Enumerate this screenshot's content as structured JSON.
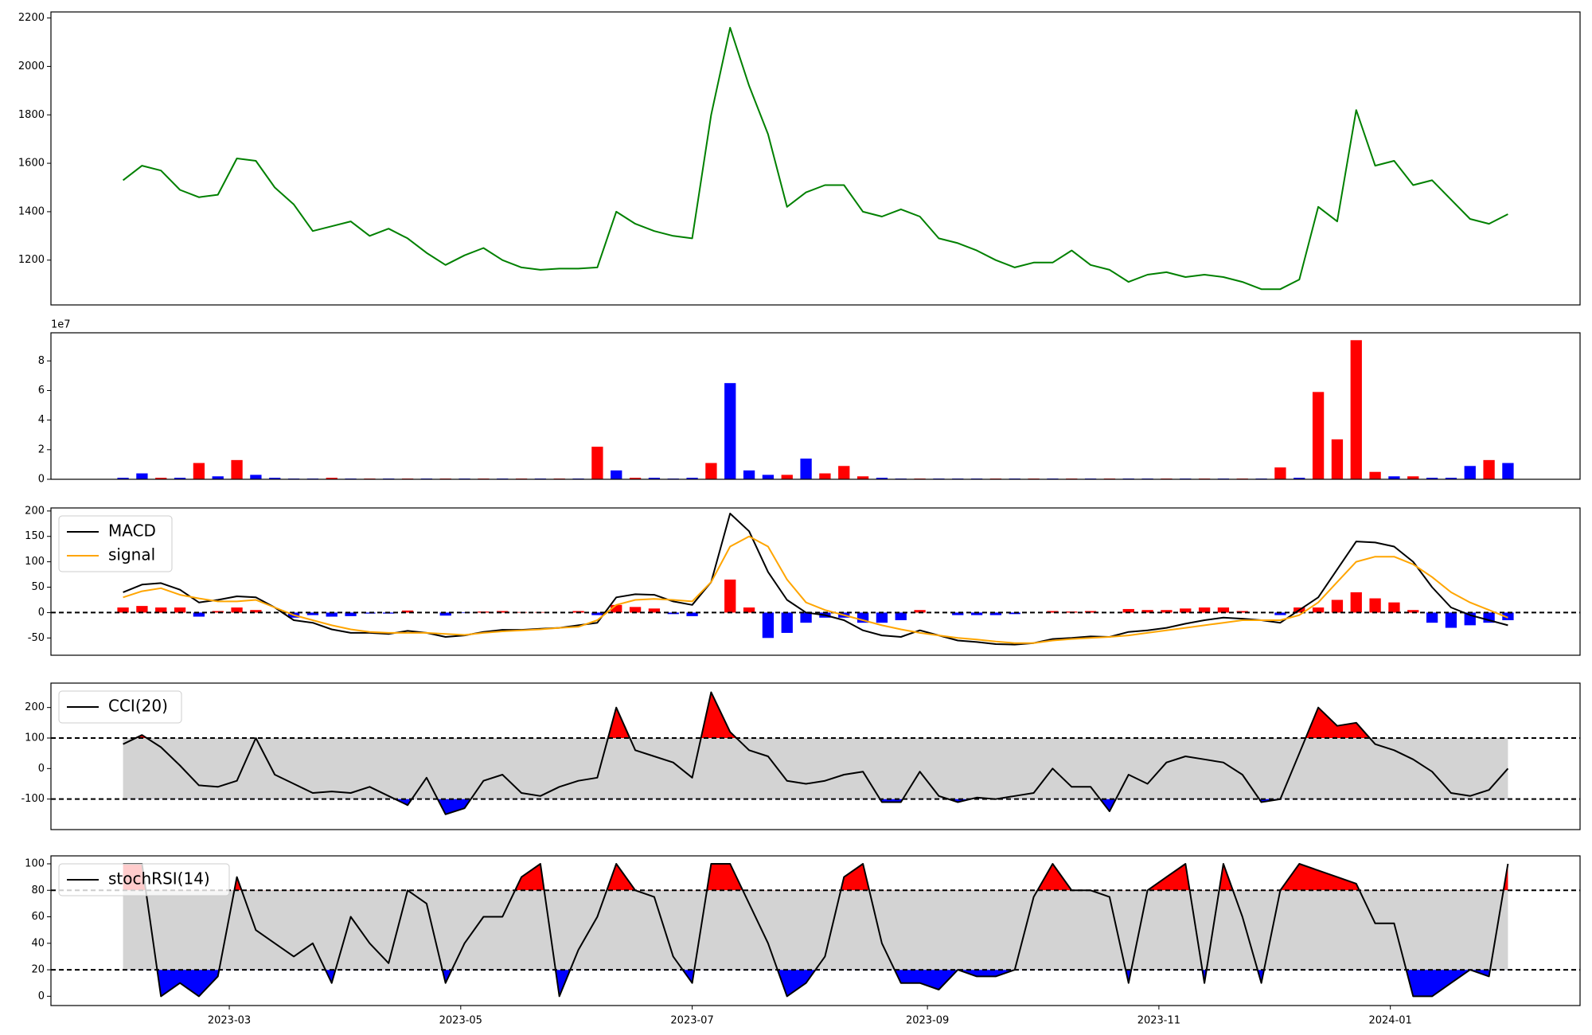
{
  "chart_data": {
    "type": "multi-panel",
    "x": [
      "2023-02-01",
      "2023-02-06",
      "2023-02-11",
      "2023-02-16",
      "2023-02-21",
      "2023-02-26",
      "2023-03-03",
      "2023-03-08",
      "2023-03-13",
      "2023-03-18",
      "2023-03-23",
      "2023-03-28",
      "2023-04-02",
      "2023-04-07",
      "2023-04-12",
      "2023-04-17",
      "2023-04-22",
      "2023-04-27",
      "2023-05-02",
      "2023-05-07",
      "2023-05-12",
      "2023-05-17",
      "2023-05-22",
      "2023-05-27",
      "2023-06-01",
      "2023-06-06",
      "2023-06-11",
      "2023-06-16",
      "2023-06-21",
      "2023-06-26",
      "2023-07-01",
      "2023-07-06",
      "2023-07-11",
      "2023-07-16",
      "2023-07-21",
      "2023-07-26",
      "2023-07-31",
      "2023-08-05",
      "2023-08-10",
      "2023-08-15",
      "2023-08-20",
      "2023-08-25",
      "2023-08-30",
      "2023-09-04",
      "2023-09-09",
      "2023-09-14",
      "2023-09-19",
      "2023-09-24",
      "2023-09-29",
      "2023-10-04",
      "2023-10-09",
      "2023-10-14",
      "2023-10-19",
      "2023-10-24",
      "2023-10-29",
      "2023-11-03",
      "2023-11-08",
      "2023-11-13",
      "2023-11-18",
      "2023-11-23",
      "2023-11-28",
      "2023-12-03",
      "2023-12-08",
      "2023-12-13",
      "2023-12-18",
      "2023-12-23",
      "2023-12-28",
      "2024-01-02",
      "2024-01-07",
      "2024-01-12",
      "2024-01-17",
      "2024-01-22",
      "2024-01-27",
      "2024-02-01"
    ],
    "xlim": [
      "2023-01-13",
      "2024-02-20"
    ],
    "xticks": [
      {
        "value": "2023-03-01",
        "label": "2023-03"
      },
      {
        "value": "2023-05-01",
        "label": "2023-05"
      },
      {
        "value": "2023-07-01",
        "label": "2023-07"
      },
      {
        "value": "2023-09-01",
        "label": "2023-09"
      },
      {
        "value": "2023-11-01",
        "label": "2023-11"
      },
      {
        "value": "2024-01-01",
        "label": "2024-01"
      }
    ],
    "panels": [
      {
        "type": "line",
        "ylim": [
          1015,
          2225
        ],
        "yticks": [
          1200,
          1400,
          1600,
          1800,
          2000,
          2200
        ],
        "series": [
          {
            "color": "green",
            "values": [
              1530,
              1590,
              1570,
              1490,
              1460,
              1470,
              1620,
              1610,
              1500,
              1430,
              1320,
              1340,
              1360,
              1300,
              1330,
              1290,
              1230,
              1180,
              1220,
              1250,
              1200,
              1170,
              1160,
              1165,
              1165,
              1170,
              1400,
              1350,
              1320,
              1300,
              1290,
              1800,
              2160,
              1920,
              1720,
              1420,
              1480,
              1510,
              1510,
              1400,
              1380,
              1410,
              1380,
              1290,
              1270,
              1240,
              1200,
              1170,
              1190,
              1190,
              1240,
              1180,
              1160,
              1110,
              1140,
              1150,
              1130,
              1140,
              1130,
              1110,
              1080,
              1080,
              1120,
              1420,
              1360,
              1820,
              1590,
              1610,
              1510,
              1530,
              1450,
              1370,
              1350,
              1390
            ]
          }
        ]
      },
      {
        "type": "bar",
        "ylim": [
          0,
          99000000
        ],
        "offset_label": "1e7",
        "yticks": [
          0,
          {
            "value": 20000000,
            "label": "2"
          },
          {
            "value": 40000000,
            "label": "4"
          },
          {
            "value": 60000000,
            "label": "6"
          },
          {
            "value": 80000000,
            "label": "8"
          }
        ],
        "values": [
          1000000,
          4000000,
          1000000,
          1000000,
          11000000,
          2000000,
          13000000,
          3000000,
          1000000,
          500000,
          500000,
          1000000,
          500000,
          500000,
          500000,
          500000,
          500000,
          500000,
          500000,
          500000,
          500000,
          500000,
          500000,
          500000,
          500000,
          22000000,
          6000000,
          1000000,
          1000000,
          500000,
          1000000,
          11000000,
          65000000,
          6000000,
          3000000,
          3000000,
          14000000,
          4000000,
          9000000,
          2000000,
          1000000,
          500000,
          500000,
          500000,
          500000,
          500000,
          500000,
          500000,
          500000,
          500000,
          500000,
          500000,
          500000,
          500000,
          500000,
          500000,
          500000,
          500000,
          500000,
          500000,
          500000,
          8000000,
          1000000,
          59000000,
          27000000,
          94000000,
          5000000,
          2000000,
          2000000,
          1000000,
          1000000,
          9000000,
          13000000,
          11000000
        ],
        "colors": [
          "blue",
          "blue",
          "red",
          "blue",
          "red",
          "blue",
          "red",
          "blue",
          "blue",
          "blue",
          "blue",
          "red",
          "blue",
          "red",
          "blue",
          "red",
          "blue",
          "red",
          "blue",
          "red",
          "blue",
          "red",
          "blue",
          "red",
          "blue",
          "red",
          "blue",
          "red",
          "blue",
          "blue",
          "blue",
          "red",
          "blue",
          "blue",
          "blue",
          "red",
          "blue",
          "red",
          "red",
          "red",
          "blue",
          "blue",
          "red",
          "blue",
          "blue",
          "blue",
          "red",
          "blue",
          "red",
          "blue",
          "red",
          "blue",
          "red",
          "blue",
          "blue",
          "red",
          "blue",
          "red",
          "blue",
          "red",
          "blue",
          "red",
          "blue",
          "red",
          "red",
          "red",
          "red",
          "blue",
          "red",
          "blue",
          "blue",
          "blue",
          "red",
          "blue"
        ]
      },
      {
        "type": "macd",
        "ylim": [
          -84,
          206
        ],
        "yticks": [
          -50,
          0,
          50,
          100,
          150,
          200
        ],
        "zero_line": 0,
        "legend": "upper left",
        "series": [
          {
            "name": "MACD",
            "color": "black",
            "values": [
              40,
              55,
              58,
              45,
              20,
              25,
              32,
              30,
              10,
              -15,
              -20,
              -33,
              -40,
              -40,
              -42,
              -36,
              -40,
              -48,
              -45,
              -38,
              -34,
              -34,
              -32,
              -30,
              -25,
              -20,
              30,
              36,
              35,
              22,
              15,
              60,
              195,
              160,
              80,
              25,
              0,
              -5,
              -15,
              -35,
              -45,
              -48,
              -35,
              -45,
              -55,
              -58,
              -62,
              -63,
              -60,
              -52,
              -50,
              -47,
              -48,
              -38,
              -35,
              -30,
              -22,
              -15,
              -10,
              -12,
              -15,
              -20,
              5,
              30,
              85,
              140,
              138,
              130,
              100,
              50,
              10,
              -5,
              -15,
              -25
            ]
          },
          {
            "name": "signal",
            "color": "orange",
            "values": [
              30,
              42,
              48,
              35,
              28,
              22,
              22,
              25,
              10,
              -5,
              -15,
              -25,
              -33,
              -38,
              -40,
              -40,
              -40,
              -42,
              -44,
              -40,
              -37,
              -35,
              -33,
              -30,
              -28,
              -15,
              15,
              25,
              27,
              25,
              22,
              60,
              130,
              150,
              130,
              65,
              20,
              5,
              -5,
              -15,
              -25,
              -33,
              -40,
              -45,
              -50,
              -53,
              -57,
              -60,
              -60,
              -55,
              -52,
              -50,
              -48,
              -45,
              -40,
              -35,
              -30,
              -25,
              -20,
              -15,
              -15,
              -15,
              -5,
              20,
              60,
              100,
              110,
              110,
              95,
              70,
              40,
              20,
              5,
              -10
            ]
          }
        ],
        "histogram": {
          "up_color": "red",
          "down_color": "blue",
          "values": [
            10,
            13,
            10,
            10,
            -8,
            3,
            10,
            5,
            0,
            -10,
            -5,
            -8,
            -7,
            -2,
            -2,
            4,
            0,
            -6,
            -1,
            2,
            3,
            1,
            1,
            0,
            3,
            -5,
            15,
            11,
            8,
            -3,
            -7,
            0,
            65,
            10,
            -50,
            -40,
            -20,
            -10,
            -10,
            -20,
            -20,
            -15,
            5,
            0,
            -5,
            -5,
            -5,
            -3,
            0,
            3,
            2,
            3,
            0,
            7,
            5,
            5,
            8,
            10,
            10,
            3,
            0,
            -5,
            10,
            10,
            25,
            40,
            28,
            20,
            5,
            -20,
            -30,
            -25,
            -20,
            -15
          ]
        }
      },
      {
        "type": "band",
        "ylim": [
          -200,
          280
        ],
        "yticks": [
          -100,
          0,
          100,
          200
        ],
        "upper": 100,
        "lower": -100,
        "band_color": "lightgray",
        "above_color": "red",
        "below_color": "blue",
        "legend": "upper left",
        "series": [
          {
            "name": "CCI(20)",
            "color": "black",
            "values": [
              80,
              110,
              70,
              10,
              -55,
              -60,
              -40,
              100,
              -20,
              -50,
              -80,
              -75,
              -80,
              -60,
              -90,
              -120,
              -30,
              -150,
              -130,
              -40,
              -20,
              -80,
              -90,
              -60,
              -40,
              -30,
              200,
              60,
              40,
              20,
              -30,
              250,
              120,
              60,
              40,
              -40,
              -50,
              -40,
              -20,
              -10,
              -110,
              -110,
              -10,
              -90,
              -110,
              -95,
              -100,
              -90,
              -80,
              0,
              -60,
              -60,
              -140,
              -20,
              -50,
              20,
              40,
              30,
              20,
              -20,
              -110,
              -100,
              50,
              200,
              140,
              150,
              80,
              60,
              30,
              -10,
              -80,
              -90,
              -70,
              0
            ]
          }
        ]
      },
      {
        "type": "band",
        "ylim": [
          -7,
          106
        ],
        "yticks": [
          0,
          20,
          40,
          60,
          80,
          100
        ],
        "upper": 80,
        "lower": 20,
        "band_color": "lightgray",
        "above_color": "red",
        "below_color": "blue",
        "legend": "upper left",
        "series": [
          {
            "name": "stochRSI(14)",
            "color": "black",
            "values": [
              100,
              100,
              0,
              10,
              0,
              15,
              90,
              50,
              40,
              30,
              40,
              10,
              60,
              40,
              25,
              80,
              70,
              10,
              40,
              60,
              60,
              90,
              100,
              0,
              35,
              60,
              100,
              80,
              75,
              30,
              10,
              100,
              100,
              70,
              40,
              0,
              10,
              30,
              90,
              100,
              40,
              10,
              10,
              5,
              20,
              15,
              15,
              20,
              75,
              100,
              80,
              80,
              75,
              10,
              80,
              90,
              100,
              10,
              100,
              60,
              10,
              80,
              100,
              95,
              90,
              85,
              55,
              55,
              0,
              0,
              10,
              20,
              15,
              100
            ]
          }
        ]
      }
    ]
  }
}
